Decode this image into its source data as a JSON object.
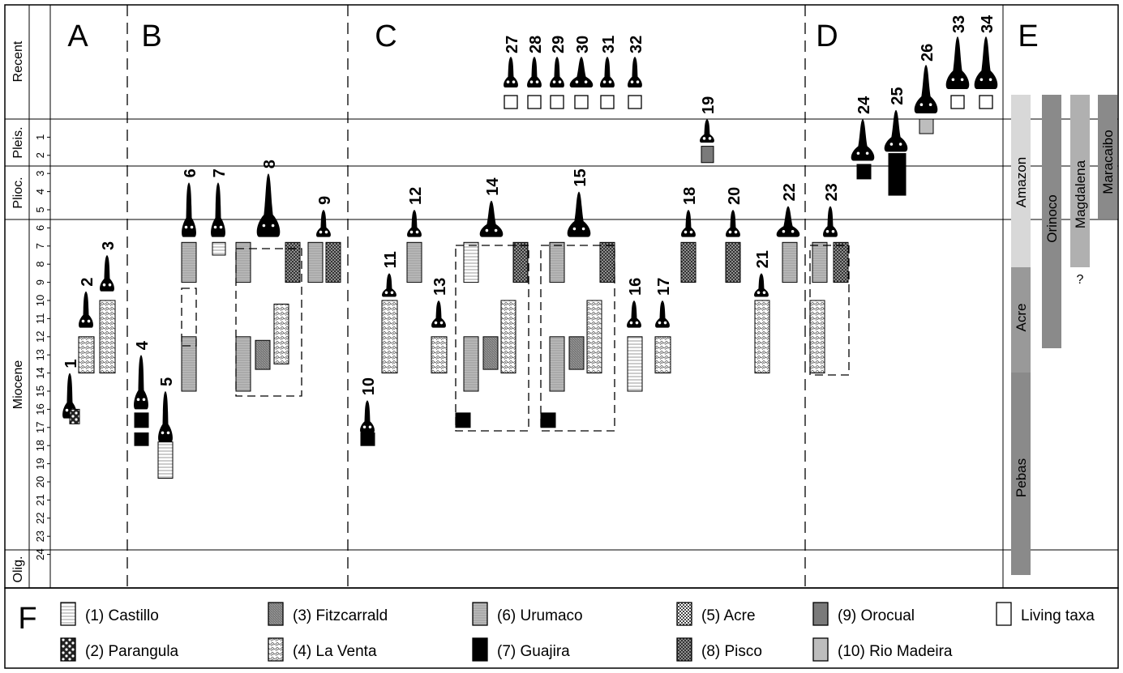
{
  "panels": [
    "A",
    "B",
    "C",
    "D",
    "E"
  ],
  "legend_letter": "F",
  "epochs": [
    {
      "name": "Recent"
    },
    {
      "name": "Pleis."
    },
    {
      "name": "Plioc."
    },
    {
      "name": "Miocene"
    },
    {
      "name": "Olig."
    }
  ],
  "ma_ticks": [
    "1",
    "2",
    "3",
    "4",
    "5",
    "6",
    "7",
    "8",
    "9",
    "10",
    "11",
    "12",
    "13",
    "14",
    "15",
    "16",
    "17",
    "18",
    "19",
    "20",
    "21",
    "22",
    "23",
    "24"
  ],
  "taxa": [
    {
      "num": "1",
      "panel": "A",
      "range": [
        14.0,
        16.5
      ],
      "formations": [
        {
          "ma": [
            16.0,
            16.8
          ],
          "fill": "parangula"
        }
      ]
    },
    {
      "num": "2",
      "panel": "A",
      "range": [
        9.5,
        11.5
      ],
      "formations": [
        {
          "ma": [
            12.0,
            14.0
          ],
          "fill": "laventa"
        }
      ]
    },
    {
      "num": "3",
      "panel": "A",
      "range": [
        7.5,
        9.5
      ],
      "formations": [
        {
          "ma": [
            10.0,
            14.0
          ],
          "fill": "laventa"
        }
      ]
    },
    {
      "num": "4",
      "panel": "B",
      "range": [
        13.0,
        16.0
      ],
      "formations": [
        {
          "ma": [
            16.2,
            17.0
          ],
          "fill": "guajira"
        },
        {
          "ma": [
            17.3,
            18.0
          ],
          "fill": "guajira"
        }
      ]
    },
    {
      "num": "5",
      "panel": "B",
      "range": [
        15.0,
        17.8
      ],
      "formations": [
        {
          "ma": [
            17.8,
            19.8
          ],
          "fill": "castillo"
        }
      ]
    },
    {
      "num": "6",
      "panel": "B",
      "range": [
        3.5,
        6.5
      ],
      "formations": [
        {
          "ma": [
            6.8,
            9.0
          ],
          "fill": "urumaco"
        },
        {
          "ma": [
            12.0,
            15.0
          ],
          "fill": "urumaco"
        }
      ]
    },
    {
      "num": "7",
      "panel": "B",
      "range": [
        3.5,
        6.5
      ],
      "formations": [
        {
          "ma": [
            6.8,
            7.5
          ],
          "fill": "castillo"
        }
      ]
    },
    {
      "num": "8",
      "panel": "B",
      "range": [
        3.0,
        6.5
      ],
      "formations": [
        {
          "ma": [
            6.8,
            9.0
          ],
          "fill": "urumaco"
        },
        {
          "ma": [
            12.0,
            15.0
          ],
          "fill": "urumaco"
        },
        {
          "ma": [
            12.2,
            13.8
          ],
          "fill": "fitzcarrald"
        },
        {
          "ma": [
            10.2,
            13.5
          ],
          "fill": "laventa"
        },
        {
          "ma": [
            6.8,
            9.0
          ],
          "fill": "pisco"
        }
      ]
    },
    {
      "num": "9",
      "panel": "B",
      "range": [
        5.0,
        6.5
      ],
      "formations": [
        {
          "ma": [
            6.8,
            9.0
          ],
          "fill": "urumaco"
        },
        {
          "ma": [
            6.8,
            9.0
          ],
          "fill": "pisco"
        }
      ]
    },
    {
      "num": "10",
      "panel": "C",
      "range": [
        15.5,
        17.3
      ],
      "formations": [
        {
          "ma": [
            17.3,
            18.0
          ],
          "fill": "guajira"
        }
      ]
    },
    {
      "num": "11",
      "panel": "C",
      "range": [
        8.5,
        9.8
      ],
      "formations": [
        {
          "ma": [
            10.0,
            14.0
          ],
          "fill": "laventa"
        }
      ]
    },
    {
      "num": "12",
      "panel": "C",
      "range": [
        5.0,
        6.5
      ],
      "formations": [
        {
          "ma": [
            6.8,
            9.0
          ],
          "fill": "urumaco"
        }
      ]
    },
    {
      "num": "13",
      "panel": "C",
      "range": [
        10.0,
        11.5
      ],
      "formations": [
        {
          "ma": [
            12.0,
            14.0
          ],
          "fill": "laventa"
        }
      ]
    },
    {
      "num": "14",
      "panel": "C",
      "range": [
        4.5,
        6.5
      ],
      "formations": [
        {
          "ma": [
            6.8,
            9.0
          ],
          "fill": "castillo"
        },
        {
          "ma": [
            12.0,
            15.0
          ],
          "fill": "urumaco"
        },
        {
          "ma": [
            12.0,
            13.8
          ],
          "fill": "fitzcarrald"
        },
        {
          "ma": [
            10.0,
            14.0
          ],
          "fill": "laventa"
        },
        {
          "ma": [
            6.8,
            9.0
          ],
          "fill": "pisco"
        },
        {
          "ma": [
            16.2,
            17.0
          ],
          "fill": "guajira"
        }
      ]
    },
    {
      "num": "15",
      "panel": "C",
      "range": [
        4.0,
        6.5
      ],
      "formations": [
        {
          "ma": [
            6.8,
            9.0
          ],
          "fill": "urumaco"
        },
        {
          "ma": [
            12.0,
            15.0
          ],
          "fill": "urumaco"
        },
        {
          "ma": [
            12.0,
            13.8
          ],
          "fill": "fitzcarrald"
        },
        {
          "ma": [
            10.0,
            14.0
          ],
          "fill": "laventa"
        },
        {
          "ma": [
            6.8,
            9.0
          ],
          "fill": "pisco"
        },
        {
          "ma": [
            16.2,
            17.0
          ],
          "fill": "guajira"
        }
      ]
    },
    {
      "num": "16",
      "panel": "C",
      "range": [
        10.0,
        11.5
      ],
      "formations": [
        {
          "ma": [
            12.0,
            15.0
          ],
          "fill": "castillo"
        }
      ]
    },
    {
      "num": "17",
      "panel": "C",
      "range": [
        10.0,
        11.5
      ],
      "formations": [
        {
          "ma": [
            12.0,
            14.0
          ],
          "fill": "laventa"
        }
      ]
    },
    {
      "num": "18",
      "panel": "C",
      "range": [
        5.0,
        6.5
      ],
      "formations": [
        {
          "ma": [
            6.8,
            9.0
          ],
          "fill": "pisco"
        }
      ]
    },
    {
      "num": "19",
      "panel": "C",
      "range": [
        0.0,
        1.3
      ],
      "formations": [
        {
          "ma": [
            1.5,
            2.4
          ],
          "fill": "orocual"
        }
      ]
    },
    {
      "num": "20",
      "panel": "C",
      "range": [
        5.0,
        6.5
      ],
      "formations": [
        {
          "ma": [
            6.8,
            9.0
          ],
          "fill": "pisco"
        }
      ]
    },
    {
      "num": "21",
      "panel": "C",
      "range": [
        8.5,
        9.8
      ],
      "formations": [
        {
          "ma": [
            10.0,
            14.0
          ],
          "fill": "laventa"
        }
      ]
    },
    {
      "num": "22",
      "panel": "C",
      "range": [
        4.8,
        6.5
      ],
      "formations": [
        {
          "ma": [
            6.8,
            9.0
          ],
          "fill": "urumaco"
        }
      ]
    },
    {
      "num": "23",
      "panel": "D",
      "range": [
        4.8,
        6.5
      ],
      "formations": [
        {
          "ma": [
            6.8,
            9.0
          ],
          "fill": "urumaco"
        },
        {
          "ma": [
            6.8,
            9.0
          ],
          "fill": "pisco"
        },
        {
          "ma": [
            10.0,
            14.0
          ],
          "fill": "laventa"
        }
      ]
    },
    {
      "num": "24",
      "panel": "D",
      "range": [
        0.0,
        2.3
      ],
      "formations": [
        {
          "ma": [
            2.5,
            3.3
          ],
          "fill": "guajira"
        }
      ]
    },
    {
      "num": "25",
      "panel": "D",
      "range": [
        -0.5,
        1.8
      ],
      "formations": [
        {
          "ma": [
            1.9,
            4.2
          ],
          "fill": "guajira"
        }
      ]
    },
    {
      "num": "26",
      "panel": "D",
      "recent": true,
      "formations": [
        {
          "fill": "riomadeira",
          "pleis": true
        }
      ]
    },
    {
      "num": "27",
      "panel": "C",
      "recent": true,
      "formations": [
        {
          "fill": "living"
        }
      ]
    },
    {
      "num": "28",
      "panel": "C",
      "recent": true,
      "formations": [
        {
          "fill": "living"
        }
      ]
    },
    {
      "num": "29",
      "panel": "C",
      "recent": true,
      "formations": [
        {
          "fill": "living"
        }
      ]
    },
    {
      "num": "30",
      "panel": "C",
      "recent": true,
      "formations": [
        {
          "fill": "living"
        }
      ]
    },
    {
      "num": "31",
      "panel": "C",
      "recent": true,
      "formations": [
        {
          "fill": "living"
        }
      ]
    },
    {
      "num": "32",
      "panel": "C",
      "recent": true,
      "formations": [
        {
          "fill": "living"
        }
      ]
    },
    {
      "num": "33",
      "panel": "D",
      "recent": true,
      "formations": [
        {
          "fill": "living"
        }
      ]
    },
    {
      "num": "34",
      "panel": "D",
      "recent": true,
      "formations": [
        {
          "fill": "living"
        }
      ]
    }
  ],
  "basins": [
    {
      "name": "Amazon",
      "color": "#d8d8d8"
    },
    {
      "name": "Orinoco",
      "color": "#8a8a8a"
    },
    {
      "name": "Magdalena",
      "color": "#b0b0b0",
      "question": "?"
    },
    {
      "name": "Maracaibo",
      "color": "#8a8a8a"
    },
    {
      "name": "Acre"
    },
    {
      "name": "Pebas",
      "color": "#8a8a8a"
    }
  ],
  "legend": [
    {
      "label": "(1) Castillo",
      "fill": "castillo"
    },
    {
      "label": "(3) Fitzcarrald",
      "fill": "fitzcarrald"
    },
    {
      "label": "(6) Urumaco",
      "fill": "urumaco"
    },
    {
      "label": "(5) Acre",
      "fill": "acre"
    },
    {
      "label": "(9) Orocual",
      "fill": "orocual"
    },
    {
      "label": "Living taxa",
      "fill": "living"
    },
    {
      "label": "(2) Parangula",
      "fill": "parangula"
    },
    {
      "label": "(4) La Venta",
      "fill": "laventa"
    },
    {
      "label": "(7) Guajira",
      "fill": "guajira"
    },
    {
      "label": "(8) Pisco",
      "fill": "pisco"
    },
    {
      "label": "(10) Rio Madeira",
      "fill": "riomadeira"
    }
  ]
}
